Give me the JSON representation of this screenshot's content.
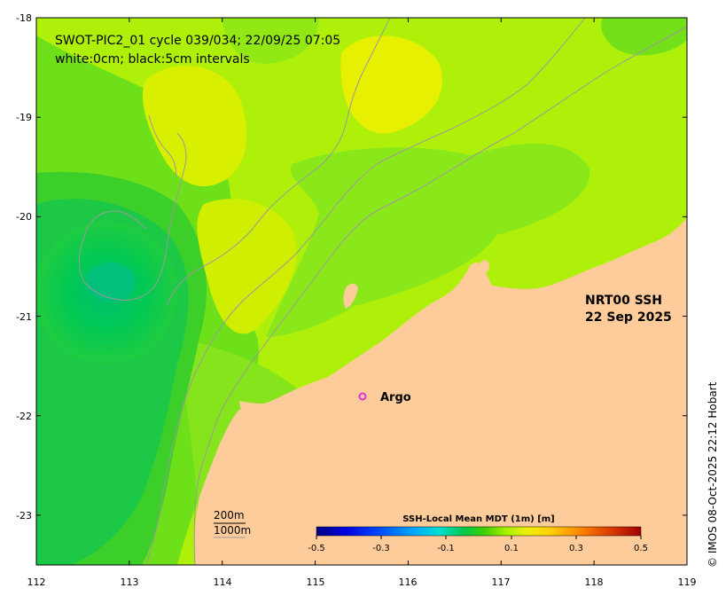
{
  "title": {
    "line1": "SWOT-PIC2_01 cycle 039/034; 22/09/25 07:05",
    "line2": "white:0cm; black:5cm intervals"
  },
  "product": {
    "line1": "NRT00 SSH",
    "line2": "22 Sep 2025"
  },
  "argo": {
    "label": "Argo",
    "marker": "o",
    "color": "#e030e0",
    "lon": 115.5,
    "lat": -21.85
  },
  "axes": {
    "x_ticks": [
      "112",
      "113",
      "114",
      "115",
      "116",
      "117",
      "118",
      "119"
    ],
    "y_ticks": [
      "-18",
      "-19",
      "-20",
      "-21",
      "-22",
      "-23"
    ],
    "lon_range": [
      112,
      119
    ],
    "lat_range": [
      -23.5,
      -18
    ]
  },
  "depth_legend": {
    "line1": "200m",
    "line2": "1000m"
  },
  "colorbar": {
    "title": "SSH-Local Mean MDT (1m) [m]",
    "tick_labels": [
      "-0.5",
      "-0.3",
      "-0.1",
      "0.1",
      "0.3",
      "0.5"
    ],
    "range": [
      -0.5,
      0.5
    ]
  },
  "credit": "© IMOS 08-Oct-2025 22:12 Hobart",
  "colors": {
    "land": "#fecc9a",
    "sea_base": "#aef00a",
    "contour_line": "#9a9a9a",
    "colormap": [
      "#00007f",
      "#0000d0",
      "#0050ff",
      "#00b0ff",
      "#00e0c0",
      "#00c040",
      "#30d000",
      "#9ef000",
      "#e8f000",
      "#ffd000",
      "#ff9000",
      "#e04000",
      "#a00000"
    ]
  }
}
